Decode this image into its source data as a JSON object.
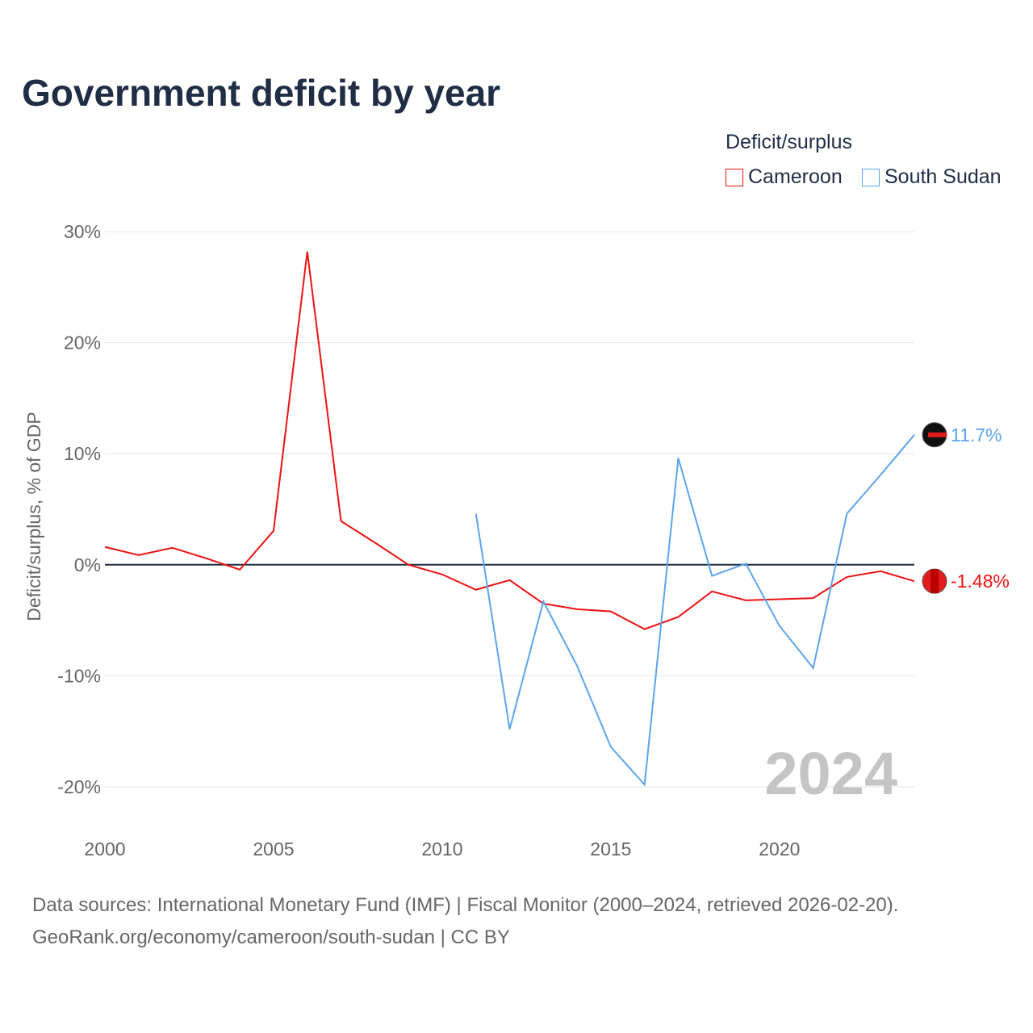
{
  "chart_data": {
    "type": "line",
    "title": "Government deficit by year",
    "ylabel": "Deficit/surplus, % of GDP",
    "xlabel": "",
    "xlim": [
      2000,
      2024
    ],
    "ylim": [
      -20,
      30
    ],
    "x_ticks": [
      2000,
      2005,
      2010,
      2015,
      2020
    ],
    "y_ticks": [
      -20,
      -10,
      0,
      10,
      20,
      30
    ],
    "y_tick_labels": [
      "-20%",
      "-10%",
      "0%",
      "10%",
      "20%",
      "30%"
    ],
    "x_tick_labels": [
      "2000",
      "2005",
      "2010",
      "2015",
      "2020"
    ],
    "grid": true,
    "legend": {
      "title": "Deficit/surplus",
      "placement": "top-right"
    },
    "year_label": "2024",
    "series": [
      {
        "name": "Cameroon",
        "color": "#ee1111",
        "x": [
          2000,
          2001,
          2002,
          2003,
          2004,
          2005,
          2006,
          2007,
          2008,
          2009,
          2010,
          2011,
          2012,
          2013,
          2014,
          2015,
          2016,
          2017,
          2018,
          2019,
          2020,
          2021,
          2022,
          2023,
          2024
        ],
        "values": [
          1.6,
          0.87,
          1.53,
          0.58,
          -0.44,
          3.05,
          28.2,
          3.93,
          2.0,
          0.0,
          -0.87,
          -2.25,
          -1.38,
          -3.5,
          -4.0,
          -4.2,
          -5.8,
          -4.7,
          -2.4,
          -3.2,
          -3.1,
          -3.0,
          -1.1,
          -0.58,
          -1.48
        ],
        "end_label": "-1.48%"
      },
      {
        "name": "South Sudan",
        "color": "#5ba4ee",
        "x": [
          2011,
          2012,
          2013,
          2014,
          2015,
          2016,
          2017,
          2018,
          2019,
          2020,
          2021,
          2022,
          2023,
          2024
        ],
        "values": [
          4.6,
          -14.8,
          -3.3,
          -9.1,
          -16.4,
          -19.8,
          9.6,
          -1.0,
          0.1,
          -5.5,
          -9.3,
          4.6,
          8.1,
          11.7
        ],
        "end_label": "11.7%"
      }
    ]
  },
  "footer": {
    "sources": "Data sources: International Monetary Fund (IMF) | Fiscal Monitor (2000–2024, retrieved 2026-02-20).",
    "credit": "GeoRank.org/economy/cameroon/south-sudan | CC BY"
  }
}
